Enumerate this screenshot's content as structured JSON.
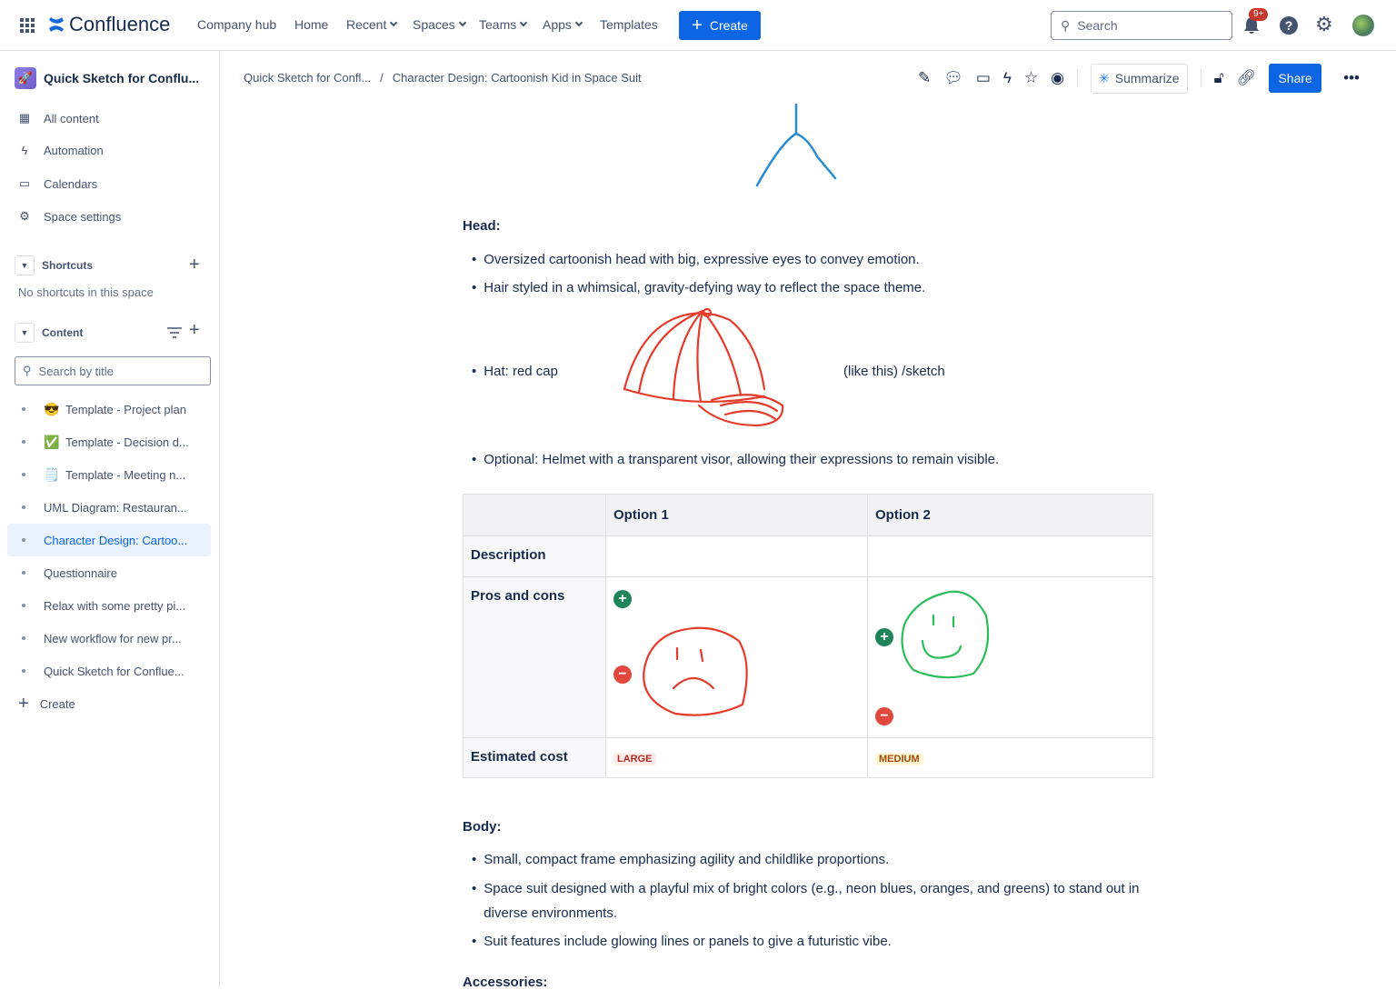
{
  "topnav": {
    "brand": "Confluence",
    "links": [
      {
        "label": "Company hub"
      },
      {
        "label": "Home"
      },
      {
        "label": "Recent",
        "dropdown": true
      },
      {
        "label": "Spaces",
        "dropdown": true
      },
      {
        "label": "Teams",
        "dropdown": true
      },
      {
        "label": "Apps",
        "dropdown": true
      },
      {
        "label": "Templates"
      }
    ],
    "create_label": "Create",
    "search_placeholder": "Search",
    "notification_count": "9+",
    "accent": "#0c66e4"
  },
  "sidebar": {
    "space_name": "Quick Sketch for Conflu...",
    "items": [
      {
        "label": "All content",
        "icon": "grid-icon"
      },
      {
        "label": "Automation",
        "icon": "lightning-icon"
      },
      {
        "label": "Calendars",
        "icon": "calendar-icon"
      },
      {
        "label": "Space settings",
        "icon": "gear-icon"
      }
    ],
    "shortcuts": {
      "title": "Shortcuts",
      "empty": "No shortcuts in this space"
    },
    "content": {
      "title": "Content",
      "search_placeholder": "Search by title",
      "tree": [
        {
          "label": "Template - Project plan",
          "emoji": "😎"
        },
        {
          "label": "Template - Decision d...",
          "emoji": "✅"
        },
        {
          "label": "Template - Meeting n...",
          "emoji": "🗒️"
        },
        {
          "label": "UML Diagram: Restauran..."
        },
        {
          "label": "Character Design: Cartoo...",
          "active": true
        },
        {
          "label": "Questionnaire"
        },
        {
          "label": "Relax with some pretty pi..."
        },
        {
          "label": "New workflow for new pr..."
        },
        {
          "label": "Quick Sketch for Conflue..."
        }
      ],
      "create_label": "Create"
    }
  },
  "page": {
    "breadcrumb": [
      "Quick Sketch for Confl...",
      "Character Design: Cartoonish Kid in Space Suit"
    ],
    "summarize_label": "Summarize",
    "share_label": "Share",
    "head_title": "Head:",
    "head_items": [
      "Oversized cartoonish head with big, expressive eyes to convey emotion.",
      "Hair styled in a whimsical, gravity-defying way to reflect the space theme."
    ],
    "hat_label": "Hat: red cap",
    "hat_note": "(like this) /sketch",
    "optional_item": "Optional: Helmet with a transparent visor, allowing their expressions to remain visible.",
    "table": {
      "headers": [
        "",
        "Option 1",
        "Option 2"
      ],
      "rows": [
        "Description",
        "Pros and cons",
        "Estimated cost"
      ],
      "cost": [
        {
          "label": "LARGE",
          "color": "#ae2e24"
        },
        {
          "label": "MEDIUM",
          "color": "#a54800"
        }
      ]
    },
    "body_title": "Body:",
    "body_items": [
      "Small, compact frame emphasizing agility and childlike proportions.",
      "Space suit designed with a playful mix of bright colors (e.g., neon blues, oranges, and greens) to stand out in diverse environments.",
      "Suit features include glowing lines or panels to give a futuristic vibe."
    ],
    "accessories_title": "Accessories:"
  }
}
